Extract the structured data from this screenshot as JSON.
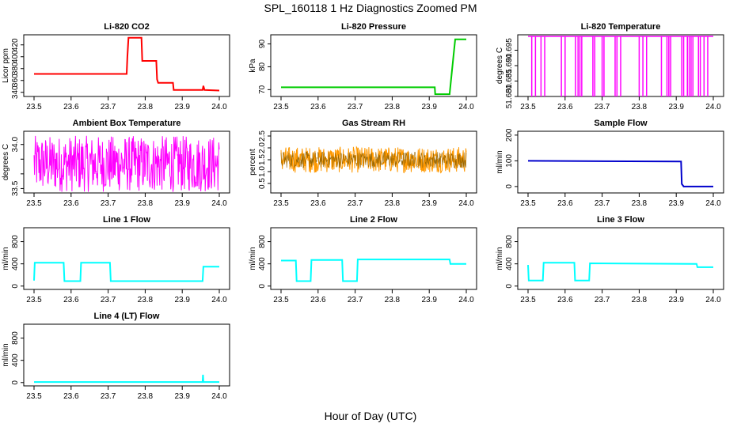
{
  "title": "SPL_160118  1 Hz Diagnostics Zoomed PM",
  "xlabel": "Hour of Day (UTC)",
  "chart_data": [
    {
      "type": "line",
      "title": "Li-820 CO2",
      "ylabel": "Licor ppm",
      "color": "#ff0000",
      "xlim": [
        23.5,
        24.0
      ],
      "ylim": [
        333,
        437
      ],
      "xticks": [
        "23.5",
        "23.6",
        "23.7",
        "23.8",
        "23.9",
        "24.0"
      ],
      "yticks": [
        "340",
        "360",
        "380",
        "400",
        "420"
      ],
      "series": [
        {
          "x": [
            23.5,
            23.75,
            23.752,
            23.755,
            23.79,
            23.792,
            23.83,
            23.832,
            23.835,
            23.875,
            23.877,
            23.88,
            23.94,
            23.955,
            23.957,
            23.96,
            24.0
          ],
          "y": [
            371,
            371,
            400,
            432,
            432,
            393,
            393,
            362,
            356,
            356,
            344,
            344,
            344,
            344,
            351,
            344,
            343
          ]
        }
      ]
    },
    {
      "type": "line",
      "title": "Li-820 Pressure",
      "ylabel": "kPa",
      "color": "#00cc00",
      "xlim": [
        23.5,
        24.0
      ],
      "ylim": [
        67,
        94
      ],
      "xticks": [
        "23.5",
        "23.6",
        "23.7",
        "23.8",
        "23.9",
        "24.0"
      ],
      "yticks": [
        "70",
        "80",
        "90"
      ],
      "series": [
        {
          "x": [
            23.5,
            23.915,
            23.916,
            23.955,
            23.965,
            23.97,
            24.0
          ],
          "y": [
            71,
            71,
            68,
            68,
            84,
            92,
            92
          ]
        }
      ]
    },
    {
      "type": "line",
      "title": "Li-820 Temperature",
      "ylabel": "degrees C",
      "color": "#ff00ff",
      "xlim": [
        23.5,
        24.0
      ],
      "ylim": [
        51.68,
        51.7
      ],
      "xticks": [
        "23.5",
        "23.6",
        "23.7",
        "23.8",
        "23.9",
        "24.0"
      ],
      "yticks": [
        "51.680",
        "51.685",
        "51.690",
        "51.695"
      ],
      "series": [
        {
          "baseline": 51.6995,
          "low": 51.68,
          "dips_x": [
            23.51,
            23.52,
            23.535,
            23.545,
            23.59,
            23.6,
            23.628,
            23.635,
            23.64,
            23.645,
            23.675,
            23.68,
            23.7,
            23.705,
            23.735,
            23.74,
            23.75,
            23.8,
            23.81,
            23.82,
            23.86,
            23.875,
            23.88,
            23.885,
            23.915,
            23.92,
            23.93,
            23.935,
            23.94,
            23.945,
            23.96,
            23.965,
            23.975,
            23.985
          ]
        }
      ]
    },
    {
      "type": "line",
      "title": "Ambient Box Temperature",
      "ylabel": "degrees C",
      "color": "#ff00ff",
      "xlim": [
        23.5,
        24.0
      ],
      "ylim": [
        33.45,
        34.15
      ],
      "xticks": [
        "23.5",
        "23.6",
        "23.7",
        "23.8",
        "23.9",
        "24.0"
      ],
      "yticks": [
        "33.5",
        "",
        "",
        "34.0"
      ],
      "series": [
        {
          "center": 33.78,
          "spread": 0.32
        }
      ]
    },
    {
      "type": "line",
      "title": "Gas Stream RH",
      "ylabel": "percent",
      "color": "#ff9900",
      "xlim": [
        23.5,
        24.0
      ],
      "ylim": [
        0.1,
        2.7
      ],
      "xticks": [
        "23.5",
        "23.6",
        "23.7",
        "23.8",
        "23.9",
        "24.0"
      ],
      "yticks": [
        "0.5",
        "1.0",
        "1.5",
        "2.0",
        "2.5"
      ],
      "series": [
        {
          "center": 1.5,
          "spread": 0.55
        }
      ]
    },
    {
      "type": "line",
      "title": "Sample Flow",
      "ylabel": "ml/min",
      "color": "#0000cc",
      "xlim": [
        23.5,
        24.0
      ],
      "ylim": [
        -25,
        215
      ],
      "xticks": [
        "23.5",
        "23.6",
        "23.7",
        "23.8",
        "23.9",
        "24.0"
      ],
      "yticks": [
        "0",
        "100",
        "200"
      ],
      "series": [
        {
          "x": [
            23.5,
            23.913,
            23.915,
            23.92,
            24.0
          ],
          "y": [
            100,
            97,
            10,
            0,
            0
          ]
        }
      ]
    },
    {
      "type": "line",
      "title": "Line 1 Flow",
      "ylabel": "ml/min",
      "color": "#00ffff",
      "xlim": [
        23.5,
        24.0
      ],
      "ylim": [
        -60,
        1050
      ],
      "xticks": [
        "23.5",
        "23.6",
        "23.7",
        "23.8",
        "23.9",
        "24.0"
      ],
      "yticks": [
        "0",
        "400",
        "800"
      ],
      "series": [
        {
          "x": [
            23.5,
            23.502,
            23.58,
            23.582,
            23.625,
            23.627,
            23.705,
            23.707,
            23.955,
            23.957,
            24.0
          ],
          "y": [
            100,
            420,
            420,
            90,
            90,
            420,
            420,
            90,
            90,
            350,
            350
          ]
        }
      ]
    },
    {
      "type": "line",
      "title": "Line 2 Flow",
      "ylabel": "ml/min",
      "color": "#00ffff",
      "xlim": [
        23.5,
        24.0
      ],
      "ylim": [
        -60,
        1050
      ],
      "xticks": [
        "23.5",
        "23.6",
        "23.7",
        "23.8",
        "23.9",
        "24.0"
      ],
      "yticks": [
        "0",
        "400",
        "800"
      ],
      "series": [
        {
          "x": [
            23.5,
            23.54,
            23.542,
            23.58,
            23.582,
            23.665,
            23.667,
            23.705,
            23.707,
            23.955,
            23.957,
            24.0
          ],
          "y": [
            460,
            460,
            90,
            90,
            470,
            470,
            90,
            90,
            480,
            480,
            400,
            400
          ]
        }
      ]
    },
    {
      "type": "line",
      "title": "Line 3 Flow",
      "ylabel": "ml/min",
      "color": "#00ffff",
      "xlim": [
        23.5,
        24.0
      ],
      "ylim": [
        -60,
        1050
      ],
      "xticks": [
        "23.5",
        "23.6",
        "23.7",
        "23.8",
        "23.9",
        "24.0"
      ],
      "yticks": [
        "0",
        "400",
        "800"
      ],
      "series": [
        {
          "x": [
            23.5,
            23.502,
            23.54,
            23.542,
            23.625,
            23.627,
            23.665,
            23.667,
            23.955,
            23.957,
            24.0
          ],
          "y": [
            380,
            100,
            100,
            420,
            420,
            100,
            100,
            410,
            400,
            340,
            340
          ]
        }
      ]
    },
    {
      "type": "line",
      "title": "Line 4 (LT) Flow",
      "ylabel": "ml/min",
      "color": "#00ffff",
      "xlim": [
        23.5,
        24.0
      ],
      "ylim": [
        -60,
        1050
      ],
      "xticks": [
        "23.5",
        "23.6",
        "23.7",
        "23.8",
        "23.9",
        "24.0"
      ],
      "yticks": [
        "0",
        "400",
        "800"
      ],
      "series": [
        {
          "x": [
            23.5,
            23.955,
            23.956,
            23.957,
            23.958,
            24.0
          ],
          "y": [
            10,
            10,
            140,
            10,
            10,
            10
          ]
        }
      ]
    }
  ]
}
